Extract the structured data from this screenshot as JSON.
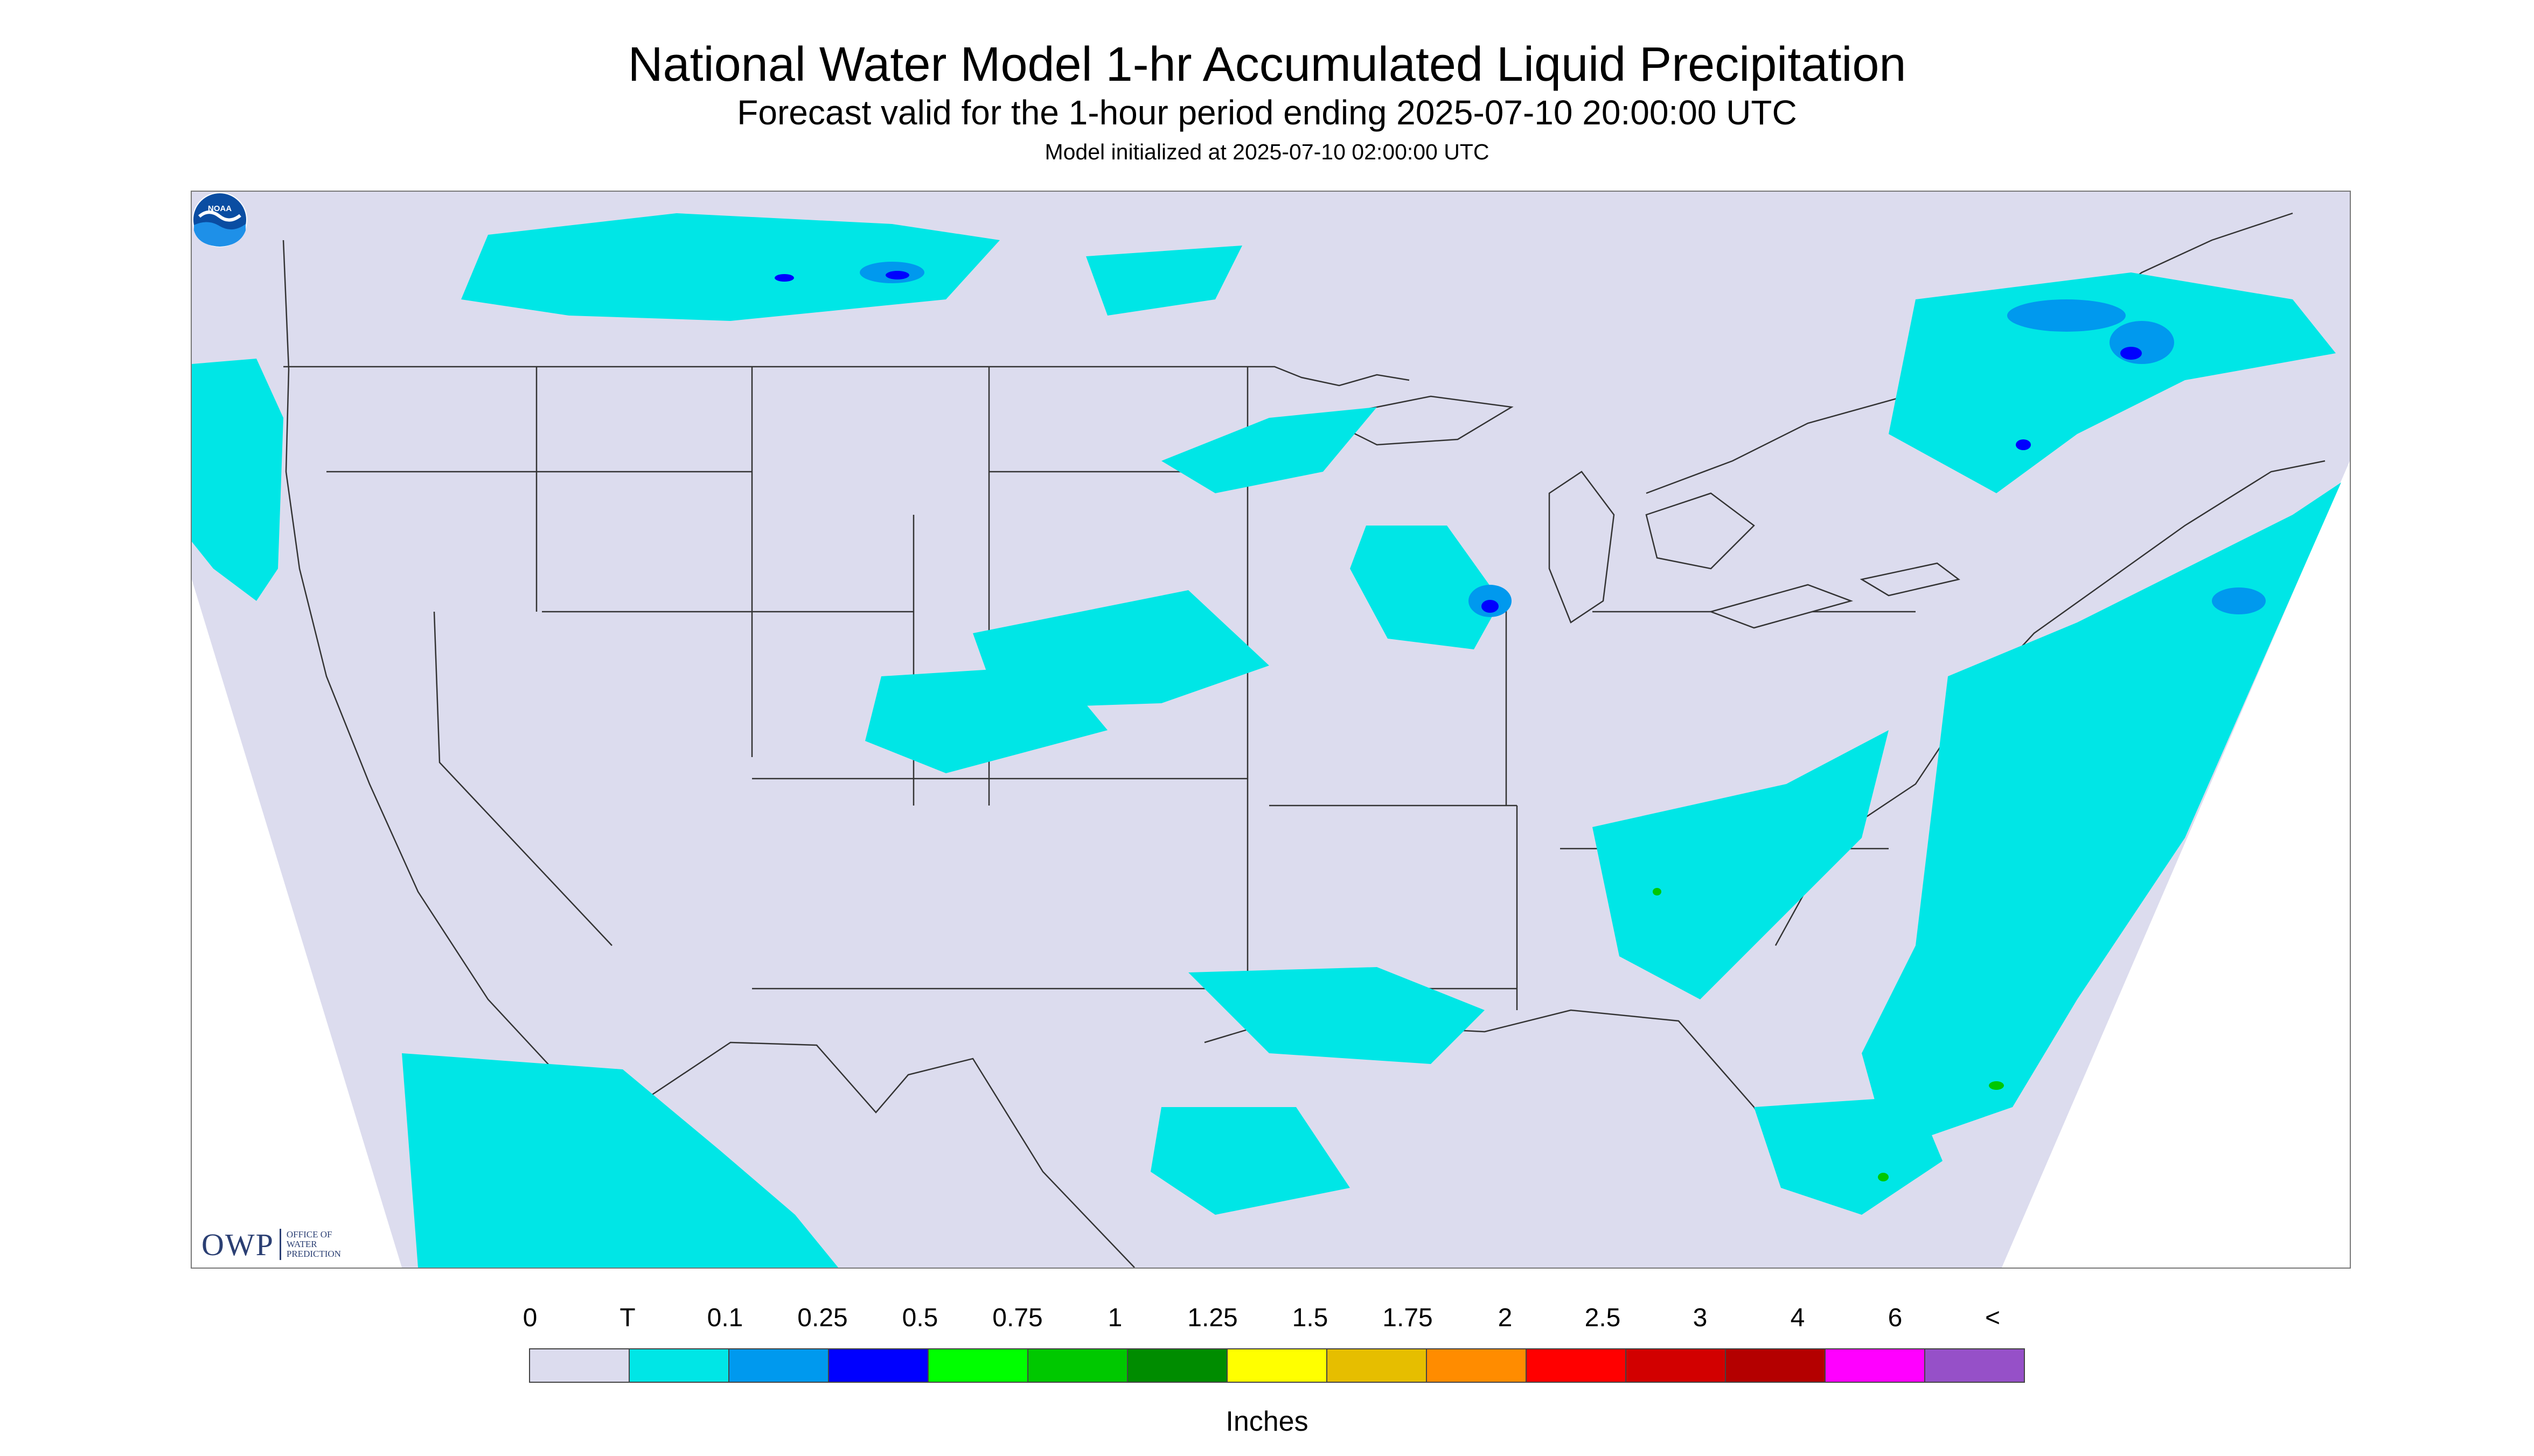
{
  "title": "National Water Model 1-hr Accumulated Liquid Precipitation",
  "subtitle": "Forecast valid for the 1-hour period ending 2025-07-10 20:00:00 UTC",
  "init_note": "Model initialized at 2025-07-10 02:00:00 UTC",
  "logo": {
    "mark": "OWP",
    "lines": [
      "OFFICE OF",
      "WATER",
      "PREDICTION"
    ]
  },
  "noaa_logo": {
    "text": "NOAA"
  },
  "legend": {
    "tick_labels": [
      "0",
      "T",
      "0.1",
      "0.25",
      "0.5",
      "0.75",
      "1",
      "1.25",
      "1.5",
      "1.75",
      "2",
      "2.5",
      "3",
      "4",
      "6",
      "<"
    ],
    "colors": [
      "#dcdcee",
      "#00e6e6",
      "#0099ee",
      "#0000ff",
      "#00ff00",
      "#00c800",
      "#008c00",
      "#ffff00",
      "#e6be00",
      "#ff8c00",
      "#ff0000",
      "#d20000",
      "#b40000",
      "#ff00ff",
      "#9650c8"
    ],
    "units": "Inches"
  },
  "map": {
    "background": "#dcdcee",
    "trace_color": "#00e6e6",
    "light_color": "#0099ee",
    "moderate_color": "#0000ff",
    "heavy_color": "#00c800",
    "boundary_color": "#333333"
  }
}
